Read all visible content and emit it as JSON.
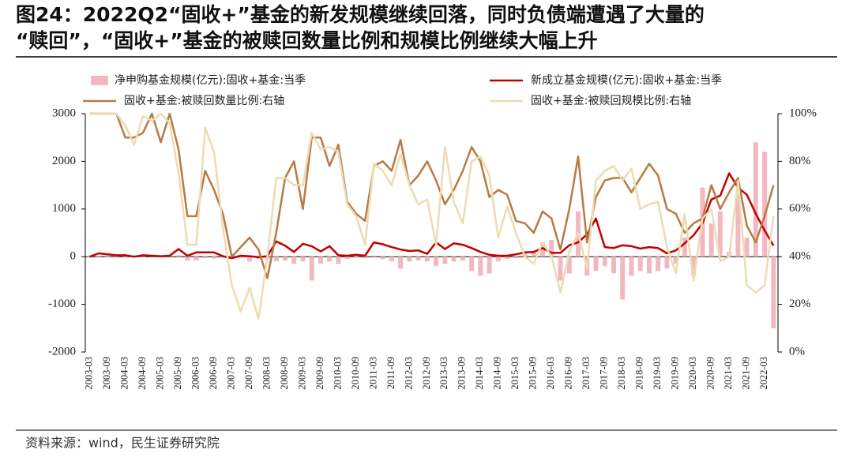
{
  "chart_data": {
    "type": "combo",
    "title": [
      "图24：2022Q2“固收+”基金的新发规模继续回落，同时负债端遭遇了大量的",
      "“赎回”，“固收+”基金的被赎回数量比例和规模比例继续大幅上升"
    ],
    "source": "资料来源：wind，民生证券研究院",
    "categories": [
      "2003-03",
      null,
      "2003-09",
      null,
      "2004-03",
      null,
      "2004-09",
      null,
      "2005-03",
      null,
      "2005-09",
      null,
      "2006-03",
      null,
      "2006-09",
      null,
      "2007-03",
      null,
      "2007-09",
      null,
      "2008-03",
      null,
      "2008-09",
      null,
      "2009-03",
      null,
      "2009-09",
      null,
      "2010-03",
      null,
      "2010-09",
      null,
      "2011-03",
      null,
      "2011-09",
      null,
      "2012-03",
      null,
      "2012-09",
      null,
      "2013-03",
      null,
      "2013-09",
      null,
      "2014-03",
      null,
      "2014-09",
      null,
      "2015-03",
      null,
      "2015-09",
      null,
      "2016-03",
      null,
      "2016-09",
      null,
      "2017-03",
      null,
      "2017-09",
      null,
      "2018-03",
      null,
      "2018-09",
      null,
      "2019-03",
      null,
      "2019-09",
      null,
      "2020-03",
      null,
      "2020-09",
      null,
      "2021-03",
      null,
      "2021-09",
      null,
      "2022-03",
      null
    ],
    "series": [
      {
        "name": "净申购基金规模(亿元):固收+基金:当季",
        "type": "bar",
        "color": "#f2b8bf",
        "values": [
          -20,
          10,
          -10,
          20,
          -20,
          10,
          -10,
          20,
          -20,
          10,
          30,
          -80,
          -80,
          -30,
          -40,
          -20,
          -50,
          -30,
          -100,
          -50,
          -50,
          -100,
          -80,
          -150,
          -100,
          -500,
          -150,
          -100,
          -150,
          -50,
          -20,
          -30,
          20,
          -50,
          -100,
          -250,
          -100,
          -80,
          -100,
          -200,
          -150,
          -100,
          -80,
          -300,
          -400,
          -350,
          -100,
          -50,
          -30,
          100,
          100,
          300,
          350,
          -500,
          -350,
          950,
          -400,
          -300,
          -200,
          -350,
          -900,
          -400,
          -300,
          -350,
          -300,
          -250,
          -150,
          400,
          -400,
          1450,
          700,
          950,
          100,
          1300,
          400,
          2400,
          2200,
          -1500
        ]
      },
      {
        "name": "新成立基金规模(亿元):固收+基金:当季",
        "type": "line",
        "color": "#c00000",
        "values": [
          0,
          70,
          50,
          30,
          30,
          0,
          30,
          20,
          10,
          20,
          160,
          20,
          90,
          90,
          90,
          10,
          -30,
          20,
          10,
          -10,
          10,
          320,
          230,
          100,
          270,
          220,
          110,
          220,
          30,
          20,
          40,
          20,
          300,
          260,
          200,
          150,
          120,
          130,
          60,
          300,
          160,
          280,
          250,
          180,
          100,
          40,
          20,
          20,
          50,
          90,
          100,
          180,
          80,
          80,
          240,
          300,
          470,
          800,
          200,
          180,
          240,
          220,
          170,
          200,
          180,
          70,
          130,
          280,
          450,
          700,
          1200,
          1280,
          1750,
          1450,
          1300,
          900,
          550,
          230
        ]
      },
      {
        "name": "固收+基金:被赎回数量比例:右轴",
        "type": "line",
        "axis": "y2",
        "color": "#b87a45",
        "values": [
          100,
          100,
          100,
          100,
          90,
          90,
          92,
          100,
          88,
          100,
          85,
          57,
          57,
          76,
          68,
          58,
          40,
          44,
          48,
          43,
          31,
          50,
          73,
          80,
          60,
          90,
          90,
          78,
          87,
          63,
          58,
          55,
          78,
          80,
          76,
          89,
          70,
          74,
          80,
          72,
          62,
          68,
          76,
          86,
          80,
          65,
          68,
          66,
          55,
          54,
          50,
          59,
          56,
          43,
          60,
          82,
          46,
          65,
          72,
          73,
          73,
          67,
          73,
          79,
          74,
          60,
          58,
          50,
          54,
          56,
          70,
          60,
          67,
          73,
          53,
          46,
          57,
          70
        ]
      },
      {
        "name": "固收+基金:被赎回规模比例:右轴",
        "type": "line",
        "axis": "y2",
        "color": "#ecdcb4",
        "values": [
          100,
          100,
          100,
          100,
          95,
          87,
          99,
          97,
          100,
          96,
          75,
          45,
          45,
          94,
          84,
          52,
          28,
          17,
          27,
          14,
          40,
          73,
          73,
          70,
          70,
          92,
          85,
          86,
          84,
          62,
          57,
          45,
          79,
          76,
          70,
          83,
          70,
          62,
          64,
          45,
          86,
          63,
          54,
          80,
          82,
          74,
          48,
          61,
          50,
          40,
          37,
          46,
          40,
          25,
          42,
          50,
          35,
          72,
          76,
          78,
          72,
          77,
          60,
          62,
          63,
          44,
          33,
          58,
          30,
          56,
          60,
          38,
          40,
          72,
          28,
          25,
          28,
          57
        ]
      }
    ],
    "ylim": [
      -2000,
      3000
    ],
    "yticks": [
      -2000,
      -1000,
      0,
      1000,
      2000,
      3000
    ],
    "y2lim": [
      0,
      100
    ],
    "y2ticks": [
      {
        "value": 0,
        "label": "0%"
      },
      {
        "value": 20,
        "label": "20%"
      },
      {
        "value": 40,
        "label": "40%"
      },
      {
        "value": 60,
        "label": "60%"
      },
      {
        "value": 80,
        "label": "80%"
      },
      {
        "value": 100,
        "label": "100%"
      }
    ],
    "legend": "top"
  }
}
